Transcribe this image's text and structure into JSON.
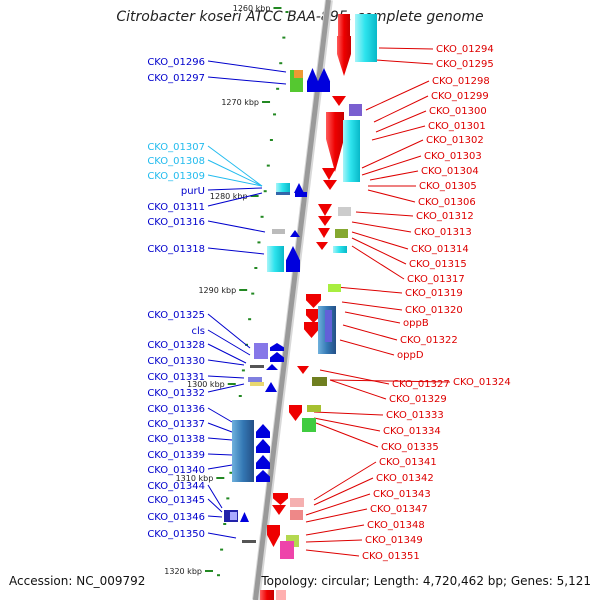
{
  "title": "Citrobacter koseri ATCC BAA-895, complete genome",
  "accession": "Accession: NC_009792",
  "summary": "Topology: circular; Length: 4,720,462 bp; Genes: 5,121",
  "colors": {
    "backbone": "#9a9a9a",
    "forward_label": "#0000cc",
    "forward_label_alt": "#22bbee",
    "reverse_label": "#dd0000",
    "forward_gene": "#0000dd",
    "reverse_gene": "#ee0000",
    "tick": "#228822"
  },
  "scale_labels": [
    "1260 kbp",
    "1270 kbp",
    "1280 kbp",
    "1290 kbp",
    "1300 kbp",
    "1310 kbp",
    "1320 kbp"
  ],
  "left_labels": [
    "CKO_01296",
    "CKO_01297",
    "CKO_01307",
    "CKO_01308",
    "CKO_01309",
    "purU",
    "CKO_01311",
    "CKO_01316",
    "CKO_01318",
    "CKO_01325",
    "cls",
    "CKO_01328",
    "CKO_01330",
    "CKO_01331",
    "CKO_01332",
    "CKO_01336",
    "CKO_01337",
    "CKO_01338",
    "CKO_01339",
    "CKO_01340",
    "CKO_01344",
    "CKO_01345",
    "CKO_01346",
    "CKO_01350"
  ],
  "right_labels": [
    "CKO_01294",
    "CKO_01295",
    "CKO_01298",
    "CKO_01299",
    "CKO_01300",
    "CKO_01301",
    "CKO_01302",
    "CKO_01303",
    "CKO_01304",
    "CKO_01305",
    "CKO_01306",
    "CKO_01312",
    "CKO_01313",
    "CKO_01314",
    "CKO_01315",
    "CKO_01317",
    "CKO_01319",
    "CKO_01320",
    "oppB",
    "CKO_01322",
    "oppD",
    "CKO_01327",
    "CKO_01324",
    "CKO_01329",
    "CKO_01333",
    "CKO_01334",
    "CKO_01335",
    "CKO_01341",
    "CKO_01342",
    "CKO_01343",
    "CKO_01347",
    "CKO_01348",
    "CKO_01349",
    "CKO_01351"
  ]
}
